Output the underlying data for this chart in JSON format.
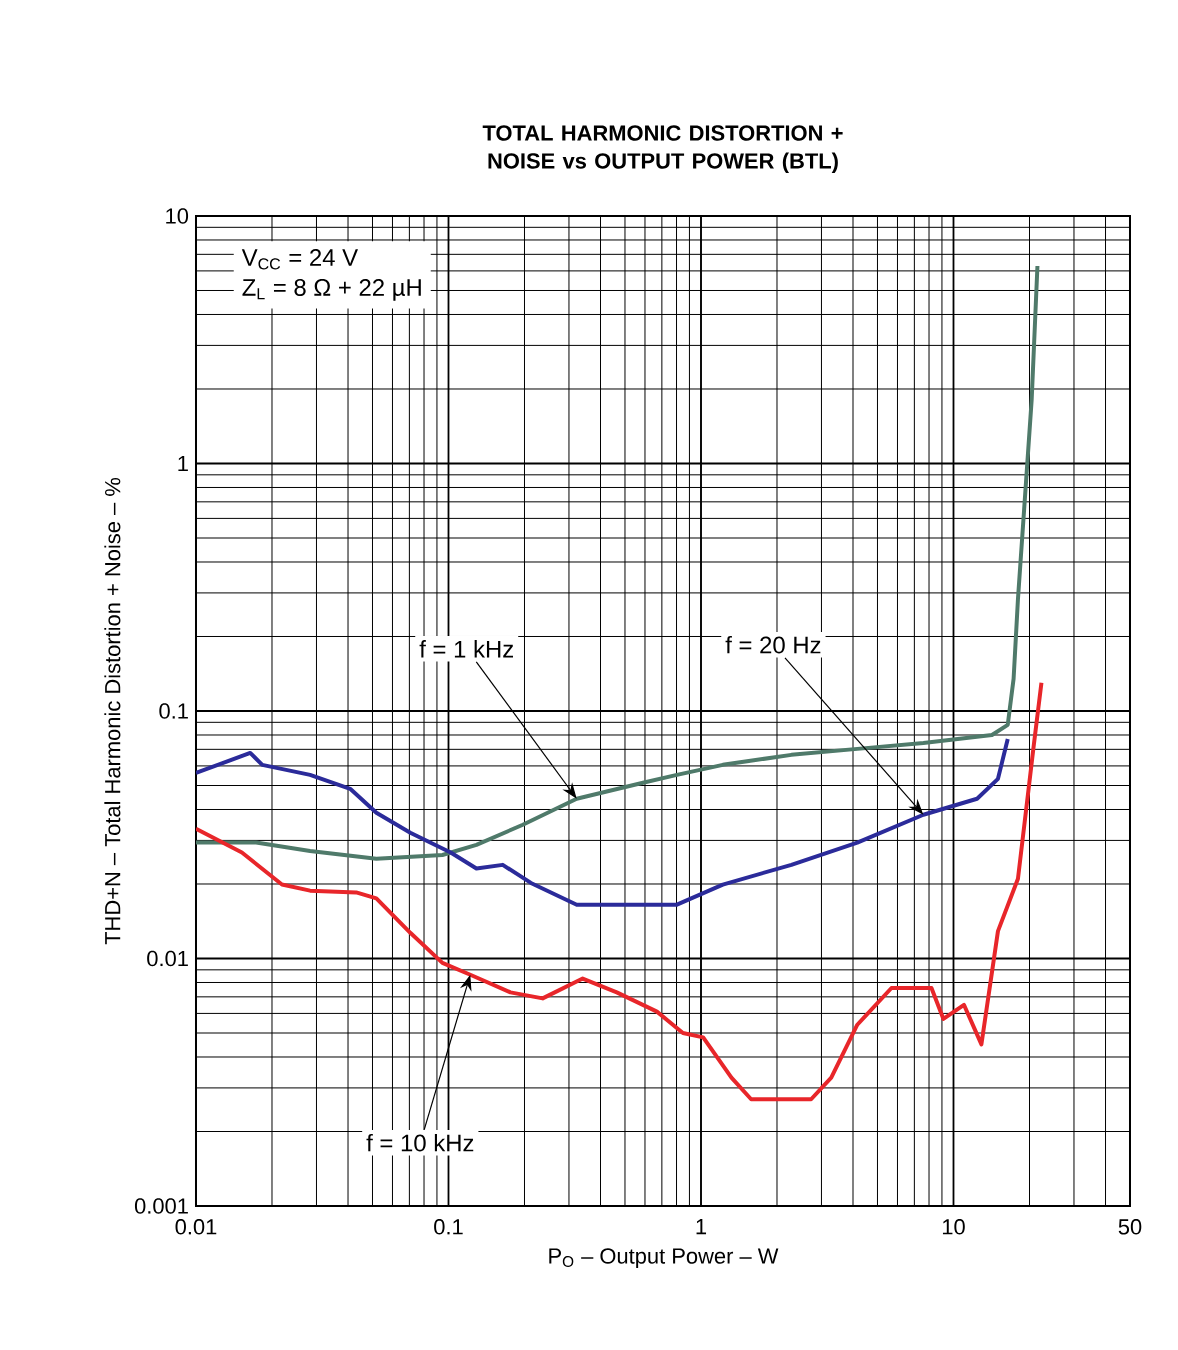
{
  "chart_data": {
    "type": "line",
    "title": "TOTAL HARMONIC DISTORTION + NOISE vs OUTPUT POWER (BTL)",
    "xlabel": "P$_{O}$ – Output Power – W",
    "ylabel": "THD+N – Total Harmonic Distortion + Noise – %",
    "log": "xy",
    "grid": true,
    "line_style": "solid",
    "xlim": [
      0.01,
      50
    ],
    "ylim": [
      0.001,
      10
    ],
    "xticks": [
      0.01,
      0.1,
      1,
      10,
      50
    ],
    "yticks": [
      0.001,
      0.01,
      0.1,
      1,
      10
    ],
    "annotations": [
      "V$_{CC}$ = 24 V",
      "Z$_{L}$ = 8 Ω + 22 µH",
      {
        "text": "f = 1 kHz",
        "x": 0.322,
        "y": 0.0442
      },
      {
        "text": "f = 20 Hz",
        "x": 7.6,
        "y": 0.0381
      },
      {
        "text": "f = 10 kHz",
        "x": 0.122,
        "y": 0.0086
      }
    ],
    "series": [
      {
        "color": "#4f7a6a",
        "x": [
          0.01,
          0.0173,
          0.0283,
          0.0518,
          0.0946,
          0.129,
          0.197,
          0.322,
          0.589,
          0.803,
          1.22,
          2.28,
          4.16,
          7.6,
          14.2,
          16.4,
          17.3,
          18.0,
          20.4,
          21.5
        ],
        "values": [
          0.0294,
          0.0294,
          0.0272,
          0.0253,
          0.0262,
          0.0288,
          0.0347,
          0.0442,
          0.0513,
          0.0552,
          0.0606,
          0.0665,
          0.0703,
          0.0743,
          0.08,
          0.0879,
          0.135,
          0.283,
          1.81,
          6.28
        ]
      },
      {
        "color": "#2b2b9a",
        "x": [
          0.01,
          0.0164,
          0.0183,
          0.0283,
          0.0408,
          0.0518,
          0.0706,
          0.102,
          0.129,
          0.164,
          0.212,
          0.322,
          0.464,
          0.803,
          1.22,
          2.28,
          4.16,
          7.6,
          12.4,
          15.0,
          16.4
        ],
        "values": [
          0.0562,
          0.0677,
          0.0606,
          0.0552,
          0.0485,
          0.0388,
          0.0322,
          0.0268,
          0.0231,
          0.0239,
          0.0202,
          0.0165,
          0.0165,
          0.0165,
          0.0199,
          0.0239,
          0.0294,
          0.0381,
          0.0442,
          0.0532,
          0.0771
        ]
      },
      {
        "color": "#e8262a",
        "x": [
          0.01,
          0.0152,
          0.0219,
          0.0283,
          0.0431,
          0.0518,
          0.0706,
          0.0946,
          0.122,
          0.176,
          0.236,
          0.34,
          0.464,
          0.669,
          0.848,
          1.02,
          1.32,
          1.58,
          2.73,
          3.28,
          4.16,
          5.68,
          8.18,
          9.12,
          11.0,
          12.9,
          15.0,
          18.0,
          20.8,
          22.3
        ],
        "values": [
          0.0334,
          0.0268,
          0.0199,
          0.0188,
          0.0185,
          0.0175,
          0.0127,
          0.0096,
          0.0086,
          0.0073,
          0.0069,
          0.0083,
          0.0073,
          0.0061,
          0.005,
          0.0048,
          0.0033,
          0.0027,
          0.0027,
          0.0033,
          0.0054,
          0.0076,
          0.0076,
          0.0057,
          0.0065,
          0.0045,
          0.0129,
          0.021,
          0.0729,
          0.13
        ]
      }
    ]
  }
}
